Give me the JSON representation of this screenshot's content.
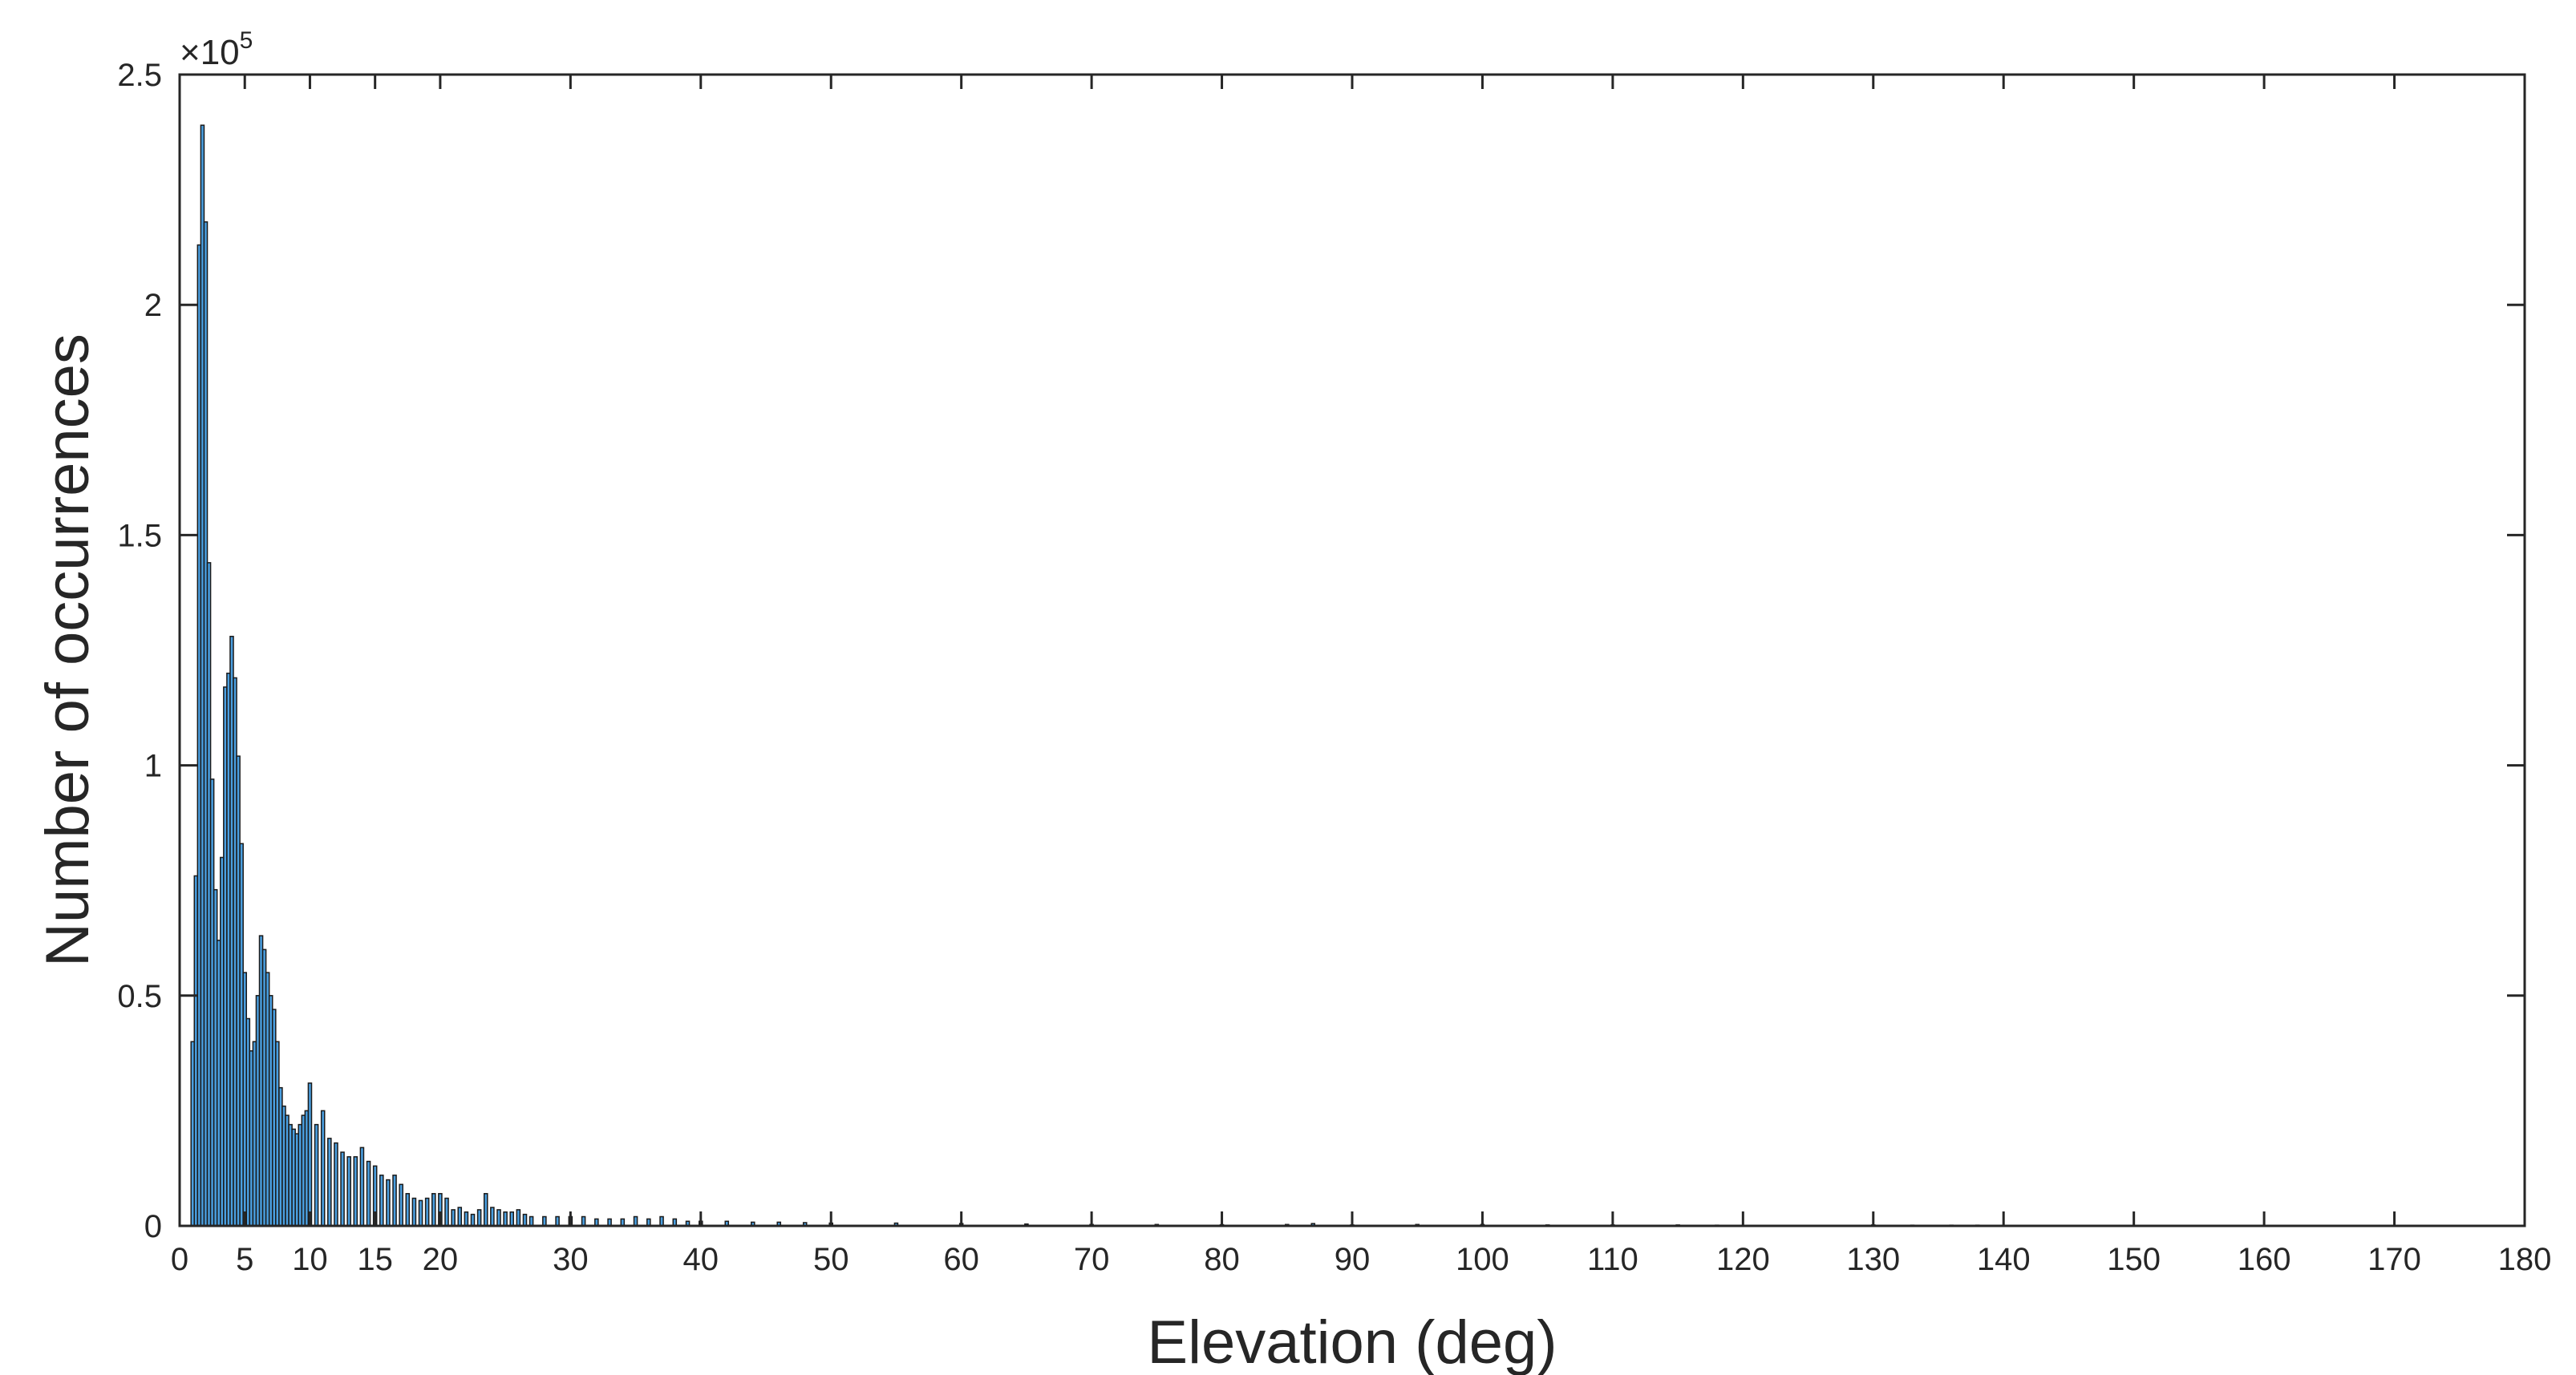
{
  "chart_data": {
    "type": "bar",
    "title": "",
    "xlabel": "Elevation (deg)",
    "ylabel": "Number of occurrences",
    "xlim": [
      0,
      180
    ],
    "ylim": [
      0,
      250000
    ],
    "y_exponent_label": {
      "base": "×10",
      "power": "5"
    },
    "xticks": [
      0,
      5,
      10,
      15,
      20,
      30,
      40,
      50,
      60,
      70,
      80,
      90,
      100,
      110,
      120,
      130,
      140,
      150,
      160,
      170,
      180
    ],
    "xtick_labels": [
      "0",
      "5",
      "10",
      "15",
      "20",
      "30",
      "40",
      "50",
      "60",
      "70",
      "80",
      "90",
      "100",
      "110",
      "120",
      "130",
      "140",
      "150",
      "160",
      "170",
      "180"
    ],
    "yticks": [
      0,
      50000,
      100000,
      150000,
      200000,
      250000
    ],
    "ytick_labels": [
      "0",
      "0.5",
      "1",
      "1.5",
      "2",
      "2.5"
    ],
    "grid": false,
    "bar_color": "#4a9fe0",
    "edge_color": "#1a1a1a",
    "bin_width": 0.25,
    "x": [
      1.0,
      1.25,
      1.5,
      1.75,
      2.0,
      2.25,
      2.5,
      2.75,
      3.0,
      3.25,
      3.5,
      3.75,
      4.0,
      4.25,
      4.5,
      4.75,
      5.0,
      5.25,
      5.5,
      5.75,
      6.0,
      6.25,
      6.5,
      6.75,
      7.0,
      7.25,
      7.5,
      7.75,
      8.0,
      8.25,
      8.5,
      8.75,
      9.0,
      9.25,
      9.5,
      9.75,
      10.0,
      10.5,
      11.0,
      11.5,
      12.0,
      12.5,
      13.0,
      13.5,
      14.0,
      14.5,
      15.0,
      15.5,
      16.0,
      16.5,
      17.0,
      17.5,
      18.0,
      18.5,
      19.0,
      19.5,
      20.0,
      20.5,
      21.0,
      21.5,
      22.0,
      22.5,
      23.0,
      23.5,
      24.0,
      24.5,
      25.0,
      25.5,
      26.0,
      26.5,
      27.0,
      28.0,
      29.0,
      30.0,
      31.0,
      32.0,
      33.0,
      34.0,
      35.0,
      36.0,
      37.0,
      38.0,
      39.0,
      40.0,
      42.0,
      44.0,
      46.0,
      48.0,
      50.0,
      55.0,
      60.0,
      65.0,
      70.0,
      75.0,
      80.0,
      85.0,
      87.0,
      90.0,
      95.0,
      100.0,
      105.0,
      110.0,
      115.0,
      118.0,
      130.0,
      133.0,
      136.0,
      138.0
    ],
    "values": [
      40000,
      76000,
      213000,
      239000,
      218000,
      144000,
      97000,
      73000,
      62000,
      80000,
      117000,
      120000,
      128000,
      119000,
      102000,
      83000,
      55000,
      45000,
      38000,
      40000,
      50000,
      63000,
      60000,
      55000,
      50000,
      47000,
      40000,
      30000,
      26000,
      24000,
      22000,
      21000,
      20000,
      22000,
      24000,
      25000,
      31000,
      22000,
      25000,
      19000,
      18000,
      16000,
      15000,
      15000,
      17000,
      14000,
      13000,
      11000,
      10000,
      11000,
      9000,
      7000,
      6000,
      5500,
      6000,
      7000,
      7000,
      6000,
      3500,
      4000,
      3000,
      2500,
      3500,
      7000,
      4000,
      3500,
      3000,
      3000,
      3500,
      2500,
      2000,
      2000,
      2000,
      2000,
      2000,
      1500,
      1500,
      1500,
      2000,
      1500,
      2000,
      1500,
      1000,
      1000,
      1000,
      800,
      800,
      700,
      600,
      600,
      500,
      400,
      300,
      300,
      250,
      300,
      500,
      200,
      300,
      300,
      200,
      200,
      200,
      150,
      200,
      150,
      150,
      150
    ]
  }
}
